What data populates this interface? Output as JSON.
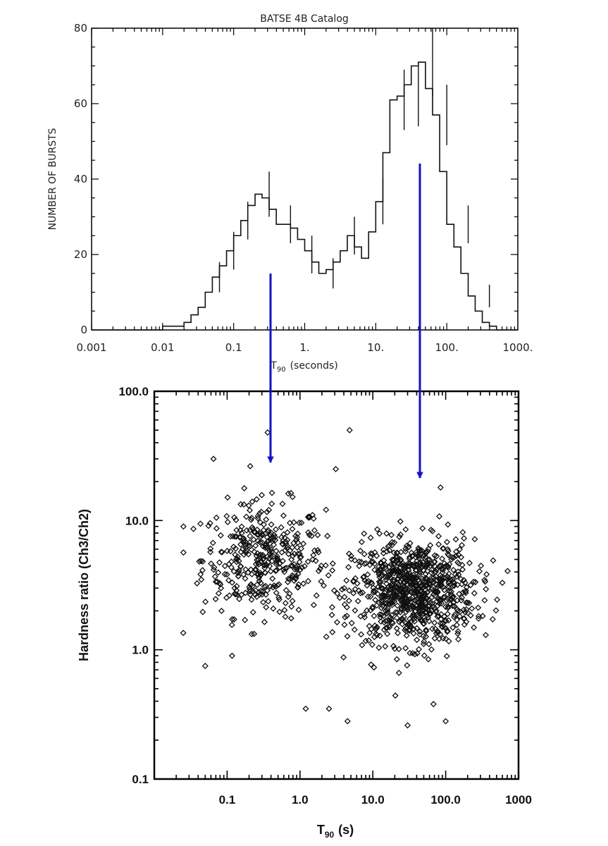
{
  "chart_data": [
    {
      "type": "histogram",
      "title": "BATSE 4B Catalog",
      "xlabel": "T",
      "xlabel_sub": "90",
      "xlabel_unit": "(seconds)",
      "ylabel": "NUMBER OF BURSTS",
      "xscale": "log",
      "xlim": [
        0.001,
        1000
      ],
      "ylim": [
        0,
        80
      ],
      "xticks": [
        "0.001",
        "0.01",
        "0.1",
        "1.",
        "10.",
        "100.",
        "1000."
      ],
      "yticks": [
        "0",
        "20",
        "40",
        "60",
        "80"
      ],
      "grid": false,
      "bin_edges": [
        0.001,
        0.00126,
        0.00158,
        0.002,
        0.00251,
        0.00316,
        0.00398,
        0.00501,
        0.00631,
        0.00794,
        0.01,
        0.0126,
        0.0158,
        0.02,
        0.0251,
        0.0316,
        0.0398,
        0.0501,
        0.0631,
        0.0794,
        0.1,
        0.126,
        0.158,
        0.2,
        0.251,
        0.316,
        0.398,
        0.501,
        0.631,
        0.794,
        1.0,
        1.26,
        1.58,
        2.0,
        2.51,
        3.16,
        3.98,
        5.01,
        6.31,
        7.94,
        10.0,
        12.6,
        15.8,
        20.0,
        25.1,
        31.6,
        39.8,
        50.1,
        63.1,
        79.4,
        100,
        126,
        158,
        200,
        251,
        316,
        398,
        501,
        631,
        794,
        1000
      ],
      "counts": [
        0,
        0,
        0,
        0,
        0,
        0,
        0,
        0,
        0,
        0,
        1,
        1,
        1,
        2,
        4,
        6,
        10,
        14,
        17,
        21,
        25,
        29,
        33,
        36,
        35,
        32,
        28,
        28,
        27,
        24,
        21,
        18,
        15,
        16,
        18,
        21,
        25,
        22,
        19,
        26,
        34,
        47,
        61,
        62,
        65,
        70,
        71,
        64,
        57,
        42,
        28,
        22,
        15,
        9,
        5,
        2,
        1,
        0,
        0,
        0
      ],
      "error_bars": [
        {
          "x": 0.0631,
          "y": 14,
          "err": 4
        },
        {
          "x": 0.1,
          "y": 21,
          "err": 5
        },
        {
          "x": 0.158,
          "y": 29,
          "err": 5
        },
        {
          "x": 0.316,
          "y": 36,
          "err": 6
        },
        {
          "x": 0.631,
          "y": 28,
          "err": 5
        },
        {
          "x": 1.26,
          "y": 20,
          "err": 5
        },
        {
          "x": 2.51,
          "y": 15,
          "err": 4
        },
        {
          "x": 5.01,
          "y": 25,
          "err": 5
        },
        {
          "x": 12.6,
          "y": 34,
          "err": 6
        },
        {
          "x": 25.1,
          "y": 61,
          "err": 8
        },
        {
          "x": 39.8,
          "y": 62,
          "err": 8
        },
        {
          "x": 63.1,
          "y": 71,
          "err": 9
        },
        {
          "x": 100,
          "y": 57,
          "err": 8
        },
        {
          "x": 200,
          "y": 28,
          "err": 5
        },
        {
          "x": 398,
          "y": 9,
          "err": 3
        }
      ]
    },
    {
      "type": "scatter",
      "xlabel": "T",
      "xlabel_sub": "90",
      "xlabel_unit": "(s)",
      "ylabel": "Hardness ratio (Ch3/Ch2)",
      "xscale": "log",
      "yscale": "log",
      "xlim": [
        0.01,
        1000
      ],
      "ylim": [
        0.1,
        100
      ],
      "xticks": [
        "0.1",
        "1.0",
        "10.0",
        "100.0",
        "1000"
      ],
      "yticks": [
        "0.1",
        "1.0",
        "10.0",
        "100.0"
      ],
      "grid": false,
      "marker": "diamond",
      "populations": [
        {
          "center_log10_t90": -0.5,
          "center_log10_hr": 0.7,
          "spread_log10_t90": 0.42,
          "spread_log10_hr": 0.22,
          "count": 400
        },
        {
          "center_log10_t90": 1.55,
          "center_log10_hr": 0.45,
          "spread_log10_t90": 0.42,
          "spread_log10_hr": 0.2,
          "count": 900
        }
      ],
      "outliers": [
        {
          "x": 0.025,
          "y": 1.35
        },
        {
          "x": 0.05,
          "y": 0.75
        },
        {
          "x": 0.065,
          "y": 30
        },
        {
          "x": 0.36,
          "y": 48
        },
        {
          "x": 4.8,
          "y": 50
        },
        {
          "x": 3.1,
          "y": 25
        },
        {
          "x": 1.2,
          "y": 0.35
        },
        {
          "x": 2.5,
          "y": 0.35
        },
        {
          "x": 4.5,
          "y": 0.28
        },
        {
          "x": 30,
          "y": 0.26
        },
        {
          "x": 100,
          "y": 0.28
        },
        {
          "x": 68,
          "y": 0.38
        },
        {
          "x": 85,
          "y": 18
        },
        {
          "x": 600,
          "y": 3.3
        }
      ]
    }
  ]
}
